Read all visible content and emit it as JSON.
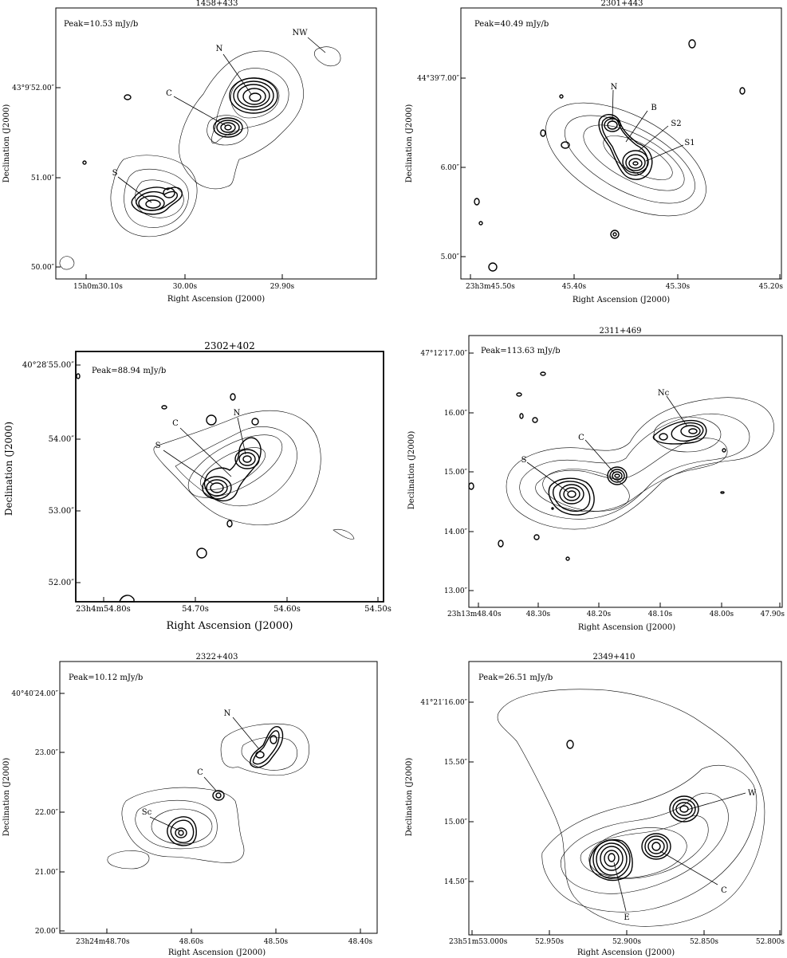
{
  "panels": [
    {
      "title": "1458+433",
      "peak": "Peak=10.53 mJy/b",
      "xlabel": "Right Ascension (J2000)",
      "ylabel": "Declination (J2000)",
      "xticks": [
        "15h0m30.10s",
        "30.00s",
        "29.90s"
      ],
      "yticks": [
        "43°9′52.00″",
        "51.00″",
        "50.00″"
      ],
      "components": [
        "N",
        "C",
        "S",
        "NW"
      ]
    },
    {
      "title": "2301+443",
      "peak": "Peak=40.49 mJy/b",
      "xlabel": "Right Ascension (J2000)",
      "ylabel": "Declination (J2000)",
      "xticks": [
        "23h3m45.50s",
        "45.40s",
        "45.30s",
        "45.20s"
      ],
      "yticks": [
        "44°39′7.00″",
        "6.00″",
        "5.00″"
      ],
      "components": [
        "N",
        "B",
        "S2",
        "S1"
      ]
    },
    {
      "title": "2302+402",
      "peak": "Peak=88.94 mJy/b",
      "xlabel": "Right Ascension (J2000)",
      "ylabel": "Declination (J2000)",
      "xticks": [
        "23h4m54.80s",
        "54.70s",
        "54.60s",
        "54.50s"
      ],
      "yticks": [
        "40°28′55.00″",
        "54.00″",
        "53.00″",
        "52.00″"
      ],
      "components": [
        "C",
        "N",
        "S"
      ]
    },
    {
      "title": "2311+469",
      "peak": "Peak=113.63 mJy/b",
      "xlabel": "Right Ascension (J2000)",
      "ylabel": "Declination (J2000)",
      "xticks": [
        "23h13m48.40s",
        "48.30s",
        "48.20s",
        "48.10s",
        "48.00s",
        "47.90s"
      ],
      "yticks": [
        "47°12′17.00″",
        "16.00″",
        "15.00″",
        "14.00″",
        "13.00″"
      ],
      "components": [
        "Nc",
        "C",
        "S"
      ]
    },
    {
      "title": "2322+403",
      "peak": "Peak=10.12 mJy/b",
      "xlabel": "Right Ascension (J2000)",
      "ylabel": "Declination (J2000)",
      "xticks": [
        "23h24m48.70s",
        "48.60s",
        "48.50s",
        "48.40s"
      ],
      "yticks": [
        "40°40′24.00″",
        "23.00″",
        "22.00″",
        "21.00″",
        "20.00″"
      ],
      "components": [
        "N",
        "C",
        "Sc"
      ]
    },
    {
      "title": "2349+410",
      "peak": "Peak=26.51 mJy/b",
      "xlabel": "Right Ascension (J2000)",
      "ylabel": "Declination (J2000)",
      "xticks": [
        "23h51m53.000s",
        "52.950s",
        "52.900s",
        "52.850s",
        "52.800s"
      ],
      "yticks": [
        "41°21′16.00″",
        "15.50″",
        "15.00″",
        "14.50″"
      ],
      "components": [
        "W",
        "C",
        "E"
      ]
    }
  ]
}
